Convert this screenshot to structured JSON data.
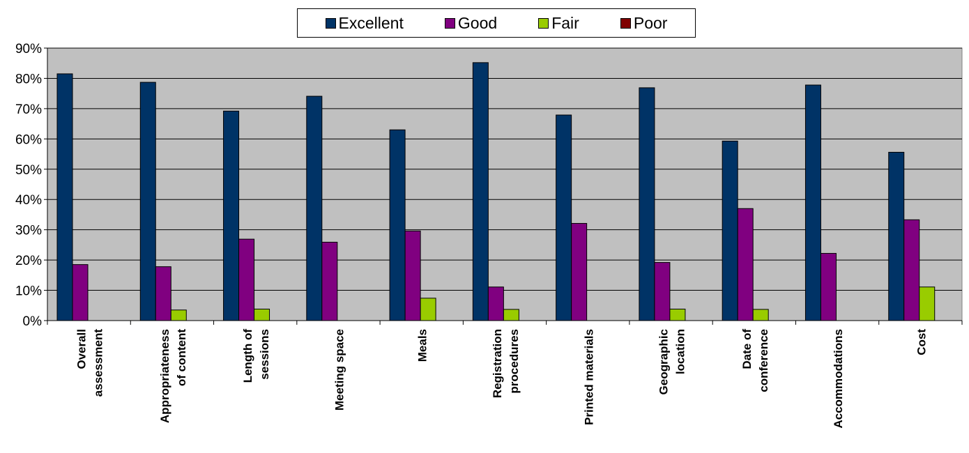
{
  "chart_data": {
    "type": "bar",
    "categories": [
      [
        "Overall",
        "assessment"
      ],
      [
        "Appropriateness",
        "of content"
      ],
      [
        "Length of",
        "sessions"
      ],
      [
        "Meeting space"
      ],
      [
        "Meals"
      ],
      [
        "Registration",
        "procedures"
      ],
      [
        "Printed materials"
      ],
      [
        "Geographic",
        "location"
      ],
      [
        "Date of",
        "conference"
      ],
      [
        "Accommodations"
      ],
      [
        "Cost"
      ]
    ],
    "series": [
      {
        "name": "Excellent",
        "color": "#003366",
        "values": [
          81.5,
          78.7,
          69.2,
          74.1,
          63.0,
          85.2,
          67.9,
          76.9,
          59.3,
          77.8,
          55.6
        ]
      },
      {
        "name": "Good",
        "color": "#800080",
        "values": [
          18.5,
          17.8,
          26.9,
          25.9,
          29.6,
          11.1,
          32.1,
          19.2,
          37.0,
          22.2,
          33.3
        ]
      },
      {
        "name": "Fair",
        "color": "#99CC00",
        "values": [
          0,
          3.5,
          3.8,
          0,
          7.4,
          3.7,
          0,
          3.8,
          3.7,
          0,
          11.1
        ]
      },
      {
        "name": "Poor",
        "color": "#800000",
        "values": [
          0,
          0,
          0,
          0,
          0,
          0,
          0,
          0,
          0,
          0,
          0
        ]
      }
    ],
    "yticks": [
      "0%",
      "10%",
      "20%",
      "30%",
      "40%",
      "50%",
      "60%",
      "70%",
      "80%",
      "90%"
    ],
    "ylim": [
      0,
      90
    ],
    "grid": true,
    "legend_position": "top-center",
    "plot_background": "#C0C0C0"
  }
}
